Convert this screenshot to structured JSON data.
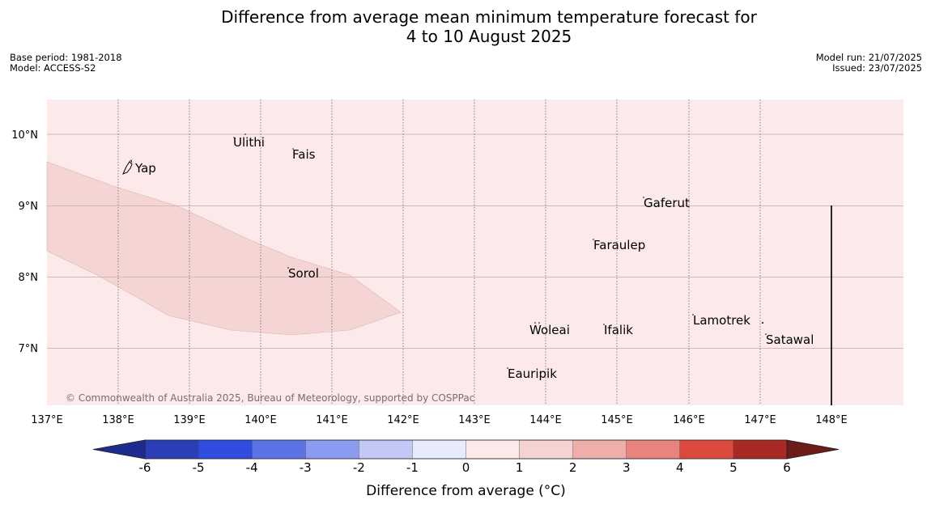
{
  "title_line1": "Difference from average mean minimum temperature forecast for",
  "title_line2": "4 to 10 August 2025",
  "base_period": "Base period: 1981-2018",
  "model": "Model: ACCESS-S2",
  "model_run": "Model run: 21/07/2025",
  "issued": "Issued: 23/07/2025",
  "copyright": "© Commonwealth of Australia 2025, Bureau of Meteorology, supported by COSPPac",
  "lat_labels": [
    "10°N",
    "9°N",
    "8°N",
    "7°N"
  ],
  "lon_labels": [
    "137°E",
    "138°E",
    "139°E",
    "140°E",
    "141°E",
    "142°E",
    "143°E",
    "144°E",
    "145°E",
    "146°E",
    "147°E",
    "148°E"
  ],
  "places": {
    "yap": "Yap",
    "ulithi": "Ulithi",
    "fais": "Fais",
    "gaferut": "Gaferut",
    "faraulep": "Faraulep",
    "sorol": "Sorol",
    "lamotrek": "Lamotrek",
    "satawal": "Satawal",
    "woleai": "Woleai",
    "ifalik": "Ifalik",
    "eauripik": "Eauripik"
  },
  "colorbar": {
    "title": "Difference from average (°C)",
    "ticks": [
      "-6",
      "-5",
      "-4",
      "-3",
      "-2",
      "-1",
      "0",
      "1",
      "2",
      "3",
      "4",
      "5",
      "6"
    ],
    "colors": [
      "#1f2c8f",
      "#2a3eb8",
      "#2f4de0",
      "#5b73e6",
      "#8a9bf0",
      "#c2c9f7",
      "#e8ebfc",
      "#fbeaea",
      "#f5d3d3",
      "#f0aeaa",
      "#e8847d",
      "#dc4a3e",
      "#a92a24",
      "#6e1c17"
    ]
  },
  "map_colors": {
    "background": "#fbeae9",
    "anomaly_1_to_2": "#f5d5d4"
  }
}
